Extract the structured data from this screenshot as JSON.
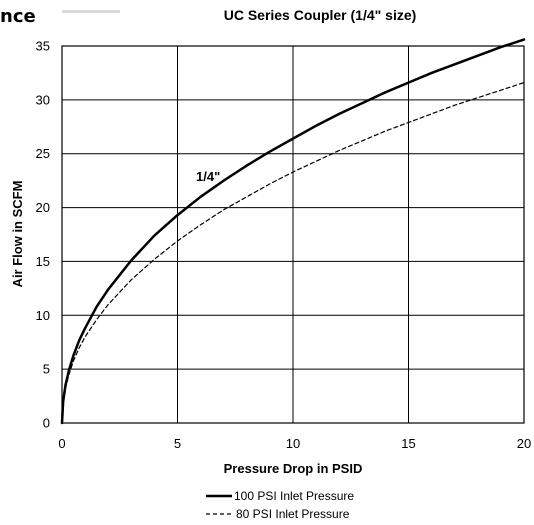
{
  "header": {
    "fragment": "nce"
  },
  "chart_data": {
    "type": "line",
    "title": "UC Series Coupler (1/4\" size)",
    "xlabel": "Pressure Drop in PSID",
    "ylabel": "Air Flow in SCFM",
    "xlim": [
      0,
      20
    ],
    "ylim": [
      0,
      35
    ],
    "x_ticks": [
      0,
      5,
      10,
      15,
      20
    ],
    "y_ticks": [
      0,
      5,
      10,
      15,
      20,
      25,
      30,
      35
    ],
    "grid": true,
    "legend_position": "bottom",
    "annotation": "1/4\"",
    "series": [
      {
        "name": "100 PSI Inlet Pressure",
        "style": "solid",
        "x": [
          0,
          0.05,
          0.15,
          0.3,
          0.5,
          0.75,
          1,
          1.5,
          2,
          3,
          4,
          5,
          6,
          7,
          8,
          9,
          10,
          11,
          12,
          13,
          14,
          15,
          16,
          17,
          18,
          19,
          20
        ],
        "y": [
          0,
          2.0,
          3.5,
          4.9,
          6.3,
          7.7,
          8.8,
          10.8,
          12.4,
          15.1,
          17.4,
          19.3,
          21.0,
          22.5,
          23.9,
          25.2,
          26.4,
          27.6,
          28.7,
          29.7,
          30.7,
          31.6,
          32.5,
          33.3,
          34.1,
          34.9,
          35.6
        ]
      },
      {
        "name": "80 PSI Inlet Pressure",
        "style": "dashed",
        "x": [
          0,
          0.05,
          0.15,
          0.3,
          0.5,
          0.75,
          1,
          1.5,
          2,
          3,
          4,
          5,
          6,
          7,
          8,
          9,
          10,
          11,
          12,
          13,
          14,
          15,
          16,
          17,
          18,
          19,
          20
        ],
        "y": [
          0,
          1.8,
          3.2,
          4.5,
          5.8,
          7.0,
          8.0,
          9.6,
          11.0,
          13.3,
          15.2,
          16.9,
          18.4,
          19.8,
          21.0,
          22.2,
          23.3,
          24.3,
          25.3,
          26.2,
          27.1,
          27.9,
          28.7,
          29.5,
          30.2,
          30.9,
          31.6
        ]
      }
    ]
  }
}
